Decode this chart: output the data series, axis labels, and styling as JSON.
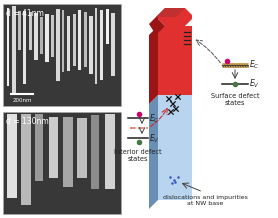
{
  "bg_color": "#ffffff",
  "sem1_label": "d = 41nm",
  "sem2_label": "d = 130nm",
  "scalebar_label": "200nm",
  "nw_body_color": "#b8d4ee",
  "nw_body_dark_color": "#6a8fb5",
  "nw_top_color": "#e03030",
  "nw_top_dark_color": "#9a1515",
  "nw_cap_light": "#e85050",
  "nw_cap_dark": "#8a1010",
  "nw_cap_top": "#c03030",
  "interior_line_color": "#e07070",
  "surface_line_color": "#c8a050",
  "ec_dot_color": "#cc0066",
  "ev_dot_color": "#447744",
  "arrow_dark": "#444444",
  "arrow_red": "#cc3333",
  "text_color": "#222222",
  "interior_label": "Interior defect\nstates",
  "surface_label": "Surface defect\nstates",
  "base_label": "dislocations and impurities\nat NW base",
  "sem_bg": "#383838",
  "sem_wire_colors": [
    0.95,
    0.85,
    0.75,
    0.9,
    0.8,
    0.88,
    0.7,
    0.92,
    0.78,
    0.85,
    0.72,
    0.88,
    0.8,
    0.92,
    0.75,
    0.87,
    0.82,
    0.9
  ],
  "sem2_wire_colors": [
    0.88,
    0.72,
    0.6,
    0.8,
    0.65,
    0.75,
    0.55,
    0.82
  ]
}
